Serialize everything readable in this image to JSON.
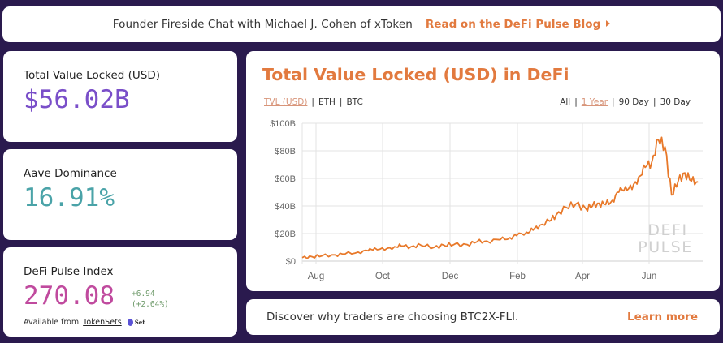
{
  "banner": {
    "message": "Founder Fireside Chat with Michael J. Cohen of xToken",
    "link_label": "Read on the DeFi Pulse Blog"
  },
  "stats": {
    "tvl": {
      "label": "Total Value Locked (USD)",
      "value": "$56.02B"
    },
    "aave": {
      "label": "Aave Dominance",
      "value": "16.91%"
    },
    "dpi": {
      "label": "DeFi Pulse Index",
      "value": "270.08",
      "change_abs": "+6.94",
      "change_pct": "(+2.64%)",
      "available_from": "Available from",
      "source_link": "TokenSets",
      "source_logo": "Set"
    }
  },
  "chart": {
    "title": "Total Value Locked (USD) in DeFi",
    "metric_toggles": [
      {
        "label": "TVL (USD)",
        "active": true
      },
      {
        "label": "ETH",
        "active": false
      },
      {
        "label": "BTC",
        "active": false
      }
    ],
    "range_toggles": [
      {
        "label": "All",
        "active": false
      },
      {
        "label": "1 Year",
        "active": true
      },
      {
        "label": "90 Day",
        "active": false
      },
      {
        "label": "30 Day",
        "active": false
      }
    ],
    "watermark": [
      "DEFI",
      "PULSE"
    ],
    "line_color": "#e8792a"
  },
  "chart_data": {
    "type": "line",
    "title": "Total Value Locked (USD) in DeFi",
    "xlabel": "",
    "ylabel": "",
    "y_tick_labels": [
      "$0",
      "$20B",
      "$40B",
      "$60B",
      "$80B",
      "$100B"
    ],
    "x_tick_labels": [
      "Aug",
      "Oct",
      "Dec",
      "Feb",
      "Apr",
      "Jun"
    ],
    "ylim": [
      0,
      100
    ],
    "grid": true,
    "legend": "none",
    "series": [
      {
        "name": "TVL (USD, $B)",
        "x_approx_month_position": [
          0.0,
          0.3,
          0.6,
          1.0,
          1.3,
          1.7,
          2.0,
          2.2,
          2.5,
          2.8,
          3.0,
          3.3,
          3.6,
          4.0,
          4.3,
          4.6,
          5.0,
          5.3,
          5.6,
          6.0,
          6.3,
          6.5,
          6.8,
          7.0,
          7.2,
          7.5,
          7.7,
          8.0,
          8.3,
          8.6,
          8.8,
          9.0,
          9.2,
          9.4,
          9.6,
          9.8,
          10.0,
          10.2,
          10.4,
          10.6,
          10.8,
          11.0,
          11.2,
          11.4,
          11.6,
          11.8,
          12.0
        ],
        "values_billion_usd": [
          2.5,
          3.2,
          3.8,
          4.5,
          5.2,
          6.5,
          7.5,
          9.5,
          8.0,
          10.5,
          11.0,
          10.5,
          11.5,
          10.0,
          11.5,
          12.0,
          12.0,
          14.0,
          14.5,
          15.5,
          17.0,
          18.5,
          21.0,
          22.5,
          26.0,
          29.0,
          33.5,
          39.0,
          41.5,
          38.0,
          40.0,
          42.0,
          41.0,
          44.0,
          50.0,
          54.0,
          52.0,
          61.0,
          68.0,
          72.0,
          88.0,
          83.0,
          48.0,
          58.0,
          64.0,
          58.0,
          57.5
        ]
      }
    ]
  },
  "promo": {
    "message": "Discover why traders are choosing BTC2X-FLI.",
    "link_label": "Learn more"
  }
}
